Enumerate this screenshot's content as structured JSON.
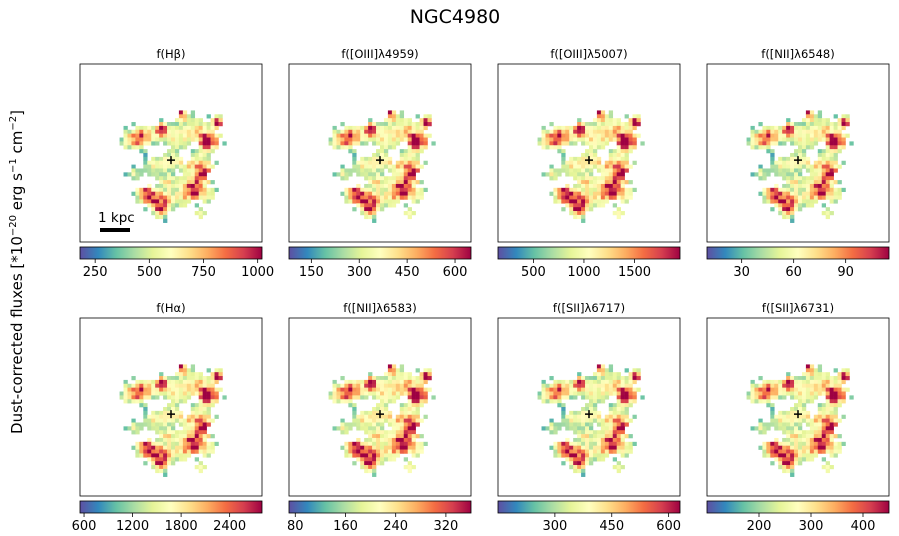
{
  "figure": {
    "title": "NGC4980",
    "ylabel_main": "Dust-corrected fluxes [*10",
    "ylabel_exp1": "−20",
    "ylabel_mid": " erg s",
    "ylabel_exp2": "−1",
    "ylabel_mid2": " cm",
    "ylabel_exp3": "−2",
    "ylabel_end": "]",
    "scalebar_label": "1 kpc",
    "colormap": "Spectral_r",
    "colormap_stops": [
      "#5e4fa2",
      "#3288bd",
      "#66c2a5",
      "#abdda4",
      "#e6f598",
      "#ffffbf",
      "#fee08b",
      "#fdae61",
      "#f46d43",
      "#d53e4f",
      "#9e0142"
    ]
  },
  "chart_data": [
    {
      "type": "heatmap",
      "title": "f(Hβ)",
      "line": "Hβ",
      "vmin": 180,
      "vmax": 1020,
      "ticks": [
        250,
        500,
        750,
        1000
      ]
    },
    {
      "type": "heatmap",
      "title": "f([OIII]λ4959)",
      "line": "[OIII]λ4959",
      "vmin": 80,
      "vmax": 650,
      "ticks": [
        150,
        300,
        450,
        600
      ]
    },
    {
      "type": "heatmap",
      "title": "f([OIII]λ5007)",
      "line": "[OIII]λ5007",
      "vmin": 150,
      "vmax": 1950,
      "ticks": [
        500,
        1000,
        1500
      ]
    },
    {
      "type": "heatmap",
      "title": "f([NII]λ6548)",
      "line": "[NII]λ6548",
      "vmin": 10,
      "vmax": 115,
      "ticks": [
        30,
        60,
        90
      ]
    },
    {
      "type": "heatmap",
      "title": "f(Hα)",
      "line": "Hα",
      "vmin": 550,
      "vmax": 2800,
      "ticks": [
        600,
        1200,
        1800,
        2400
      ]
    },
    {
      "type": "heatmap",
      "title": "f([NII]λ6583)",
      "line": "[NII]λ6583",
      "vmin": 70,
      "vmax": 360,
      "ticks": [
        80,
        160,
        240,
        320
      ]
    },
    {
      "type": "heatmap",
      "title": "f([SII]λ6717)",
      "line": "[SII]λ6717",
      "vmin": 150,
      "vmax": 630,
      "ticks": [
        300,
        450,
        600
      ]
    },
    {
      "type": "heatmap",
      "title": "f([SII]λ6731)",
      "line": "[SII]λ6731",
      "vmin": 100,
      "vmax": 450,
      "ticks": [
        200,
        300,
        400
      ]
    }
  ]
}
